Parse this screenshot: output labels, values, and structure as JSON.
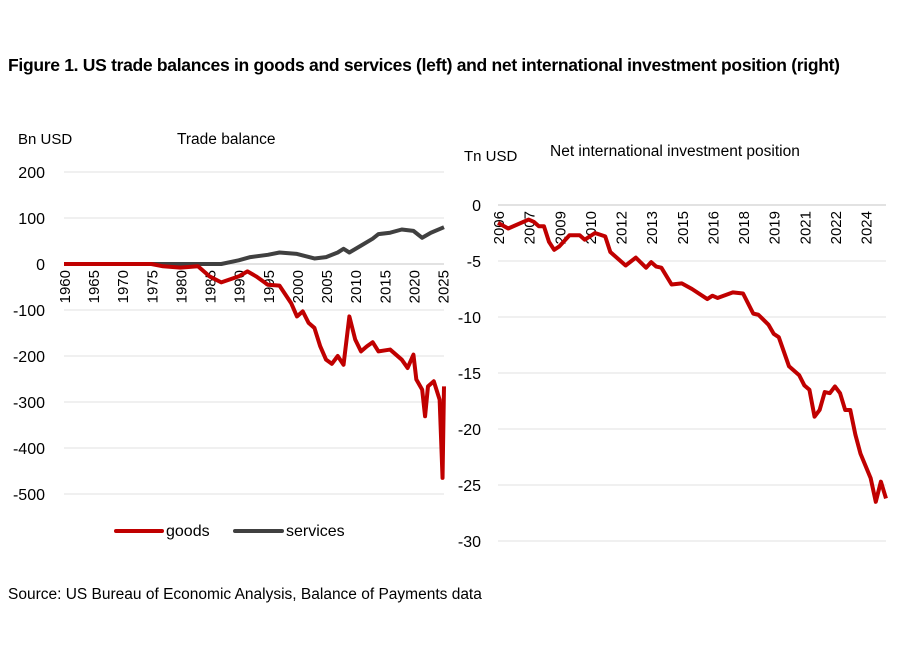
{
  "title": "Figure 1. US trade balances in goods and services (left) and net international investment position (right)",
  "source": "Source: US Bureau of Economic Analysis, Balance of Payments data",
  "colors": {
    "goods": "#c00000",
    "services": "#404040",
    "niip": "#c00000",
    "grid": "#e6e6e6"
  },
  "chart_data": [
    {
      "type": "line",
      "title": "Trade balance",
      "ylabel": "Bn USD",
      "ylim": [
        -500,
        200
      ],
      "yticks": [
        200,
        100,
        0,
        -100,
        -200,
        -300,
        -400,
        -500
      ],
      "xlim": [
        1960,
        2025.25
      ],
      "xticks": [
        "1960",
        "1965",
        "1970",
        "1975",
        "1980",
        "1985",
        "1990",
        "1995",
        "2000",
        "2005",
        "2010",
        "2015",
        "2020",
        "2025"
      ],
      "grid": true,
      "legend": "bottom",
      "series": [
        {
          "name": "goods",
          "points": [
            [
              1960,
              0
            ],
            [
              1970,
              0
            ],
            [
              1975,
              0
            ],
            [
              1977,
              -5
            ],
            [
              1980,
              -8
            ],
            [
              1983,
              -5
            ],
            [
              1985,
              -27
            ],
            [
              1987,
              -40
            ],
            [
              1990,
              -27
            ],
            [
              1991.5,
              -16
            ],
            [
              1993,
              -27
            ],
            [
              1995,
              -45
            ],
            [
              1997,
              -47
            ],
            [
              1999,
              -85
            ],
            [
              2000,
              -114
            ],
            [
              2001,
              -103
            ],
            [
              2002,
              -128
            ],
            [
              2003,
              -139
            ],
            [
              2004,
              -179
            ],
            [
              2005,
              -208
            ],
            [
              2006,
              -217
            ],
            [
              2007,
              -200
            ],
            [
              2008,
              -219
            ],
            [
              2009,
              -114
            ],
            [
              2010,
              -164
            ],
            [
              2011,
              -190
            ],
            [
              2012,
              -179
            ],
            [
              2013,
              -170
            ],
            [
              2014,
              -190
            ],
            [
              2016,
              -186
            ],
            [
              2018,
              -208
            ],
            [
              2019,
              -226
            ],
            [
              2020,
              -197
            ],
            [
              2020.5,
              -251
            ],
            [
              2021.5,
              -273
            ],
            [
              2022,
              -331
            ],
            [
              2022.5,
              -266
            ],
            [
              2023.5,
              -255
            ],
            [
              2024.5,
              -295
            ],
            [
              2025,
              -465
            ],
            [
              2025.25,
              -266
            ]
          ]
        },
        {
          "name": "services",
          "points": [
            [
              1960,
              0
            ],
            [
              1983,
              0
            ],
            [
              1987,
              0
            ],
            [
              1990,
              8
            ],
            [
              1992,
              15
            ],
            [
              1995,
              20
            ],
            [
              1997,
              25
            ],
            [
              2000,
              22
            ],
            [
              2003,
              12
            ],
            [
              2005,
              15
            ],
            [
              2007,
              25
            ],
            [
              2008,
              33
            ],
            [
              2009,
              25
            ],
            [
              2011,
              40
            ],
            [
              2013,
              55
            ],
            [
              2014,
              65
            ],
            [
              2016,
              68
            ],
            [
              2018,
              75
            ],
            [
              2020,
              72
            ],
            [
              2021.5,
              57
            ],
            [
              2023,
              68
            ],
            [
              2025.25,
              80
            ]
          ]
        }
      ]
    },
    {
      "type": "line",
      "title": "Net international investment position",
      "ylabel": "Tn USD",
      "ylim": [
        -30,
        0
      ],
      "yticks": [
        0,
        -5,
        -10,
        -15,
        -20,
        -25,
        -30
      ],
      "xlim": [
        "2006Q1",
        "2025Q1"
      ],
      "xticks": [
        [
          "2006Q1",
          "2006"
        ],
        [
          "2007Q3",
          "2007"
        ],
        [
          "2009Q1",
          "2009"
        ],
        [
          "2010Q3",
          "2010"
        ],
        [
          "2012Q1",
          "2012"
        ],
        [
          "2013Q3",
          "2013"
        ],
        [
          "2015Q1",
          "2015"
        ],
        [
          "2016Q3",
          "2016"
        ],
        [
          "2018Q1",
          "2018"
        ],
        [
          "2019Q3",
          "2019"
        ],
        [
          "2021Q1",
          "2021"
        ],
        [
          "2022Q3",
          "2022"
        ],
        [
          "2024Q1",
          "2024"
        ]
      ],
      "grid": true,
      "series": [
        {
          "points": [
            [
              "2006Q1",
              -1.6
            ],
            [
              "2006Q3",
              -2.1
            ],
            [
              "2007Q3",
              -1.3
            ],
            [
              "2007Q4",
              -1.5
            ],
            [
              "2008Q1",
              -1.9
            ],
            [
              "2008Q2",
              -1.9
            ],
            [
              "2008Q3",
              -3.3
            ],
            [
              "2008Q4",
              -4.0
            ],
            [
              "2009Q1",
              -3.7
            ],
            [
              "2009Q3",
              -2.7
            ],
            [
              "2010Q1",
              -2.7
            ],
            [
              "2010Q2",
              -3.1
            ],
            [
              "2010Q4",
              -2.5
            ],
            [
              "2011Q2",
              -2.8
            ],
            [
              "2011Q3",
              -4.2
            ],
            [
              "2011Q4",
              -4.6
            ],
            [
              "2012Q2",
              -5.4
            ],
            [
              "2012Q4",
              -4.7
            ],
            [
              "2013Q2",
              -5.6
            ],
            [
              "2013Q3",
              -5.1
            ],
            [
              "2013Q4",
              -5.5
            ],
            [
              "2014Q1",
              -5.6
            ],
            [
              "2014Q3",
              -7.1
            ],
            [
              "2015Q1",
              -7.0
            ],
            [
              "2015Q3",
              -7.5
            ],
            [
              "2016Q2",
              -8.4
            ],
            [
              "2016Q3",
              -8.1
            ],
            [
              "2016Q4",
              -8.3
            ],
            [
              "2017Q3",
              -7.8
            ],
            [
              "2018Q1",
              -7.9
            ],
            [
              "2018Q3",
              -9.7
            ],
            [
              "2018Q4",
              -9.8
            ],
            [
              "2019Q2",
              -10.7
            ],
            [
              "2019Q3",
              -11.5
            ],
            [
              "2019Q4",
              -11.8
            ],
            [
              "2020Q2",
              -14.4
            ],
            [
              "2020Q4",
              -15.2
            ],
            [
              "2021Q1",
              -16.1
            ],
            [
              "2021Q2",
              -16.5
            ],
            [
              "2021Q3",
              -18.9
            ],
            [
              "2021Q4",
              -18.3
            ],
            [
              "2022Q1",
              -16.7
            ],
            [
              "2022Q2",
              -16.8
            ],
            [
              "2022Q3",
              -16.2
            ],
            [
              "2022Q4",
              -16.8
            ],
            [
              "2023Q1",
              -18.3
            ],
            [
              "2023Q2",
              -18.3
            ],
            [
              "2023Q3",
              -20.5
            ],
            [
              "2023Q4",
              -22.2
            ],
            [
              "2024Q2",
              -24.4
            ],
            [
              "2024Q3",
              -26.5
            ],
            [
              "2024Q4",
              -24.7
            ],
            [
              "2025Q1",
              -26.2
            ]
          ]
        }
      ]
    }
  ]
}
